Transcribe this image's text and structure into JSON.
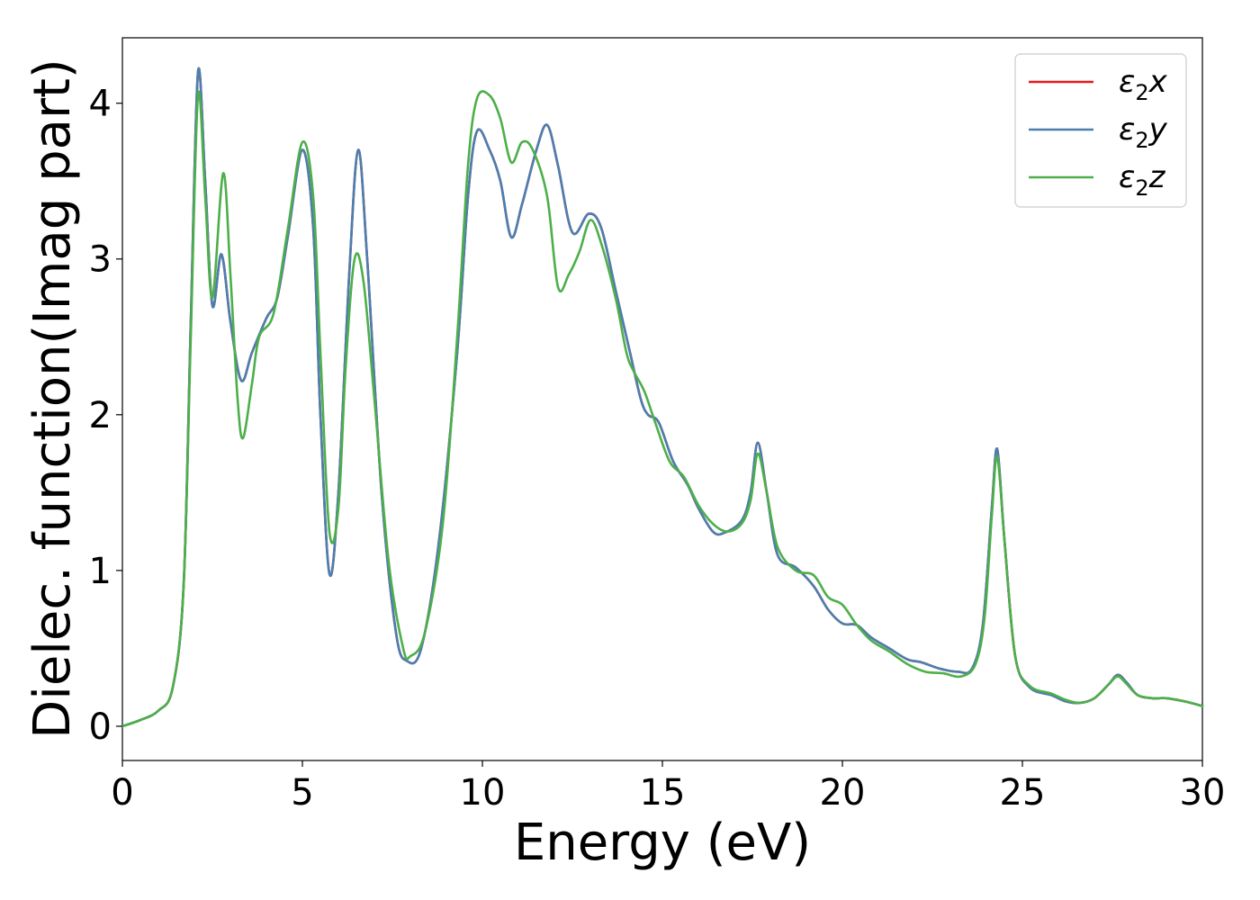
{
  "chart_data": {
    "type": "line",
    "xlabel": "Energy (eV)",
    "ylabel": "Dielec. function(Imag part)",
    "xlim": [
      0,
      30
    ],
    "ylim": [
      -0.22,
      4.42
    ],
    "xticks": [
      0,
      5,
      10,
      15,
      20,
      25,
      30
    ],
    "yticks": [
      0,
      1,
      2,
      3,
      4
    ],
    "xtick_labels": [
      "0",
      "5",
      "10",
      "15",
      "20",
      "25",
      "30"
    ],
    "ytick_labels": [
      "0",
      "1",
      "2",
      "3",
      "4"
    ],
    "grid": false,
    "legend_position": "top-right",
    "series": [
      {
        "name": "ε₂x",
        "legend_label": {
          "sym": "ε",
          "sub": "2",
          "axis": "x"
        },
        "color": "#e41a1c",
        "points": [
          [
            0,
            0
          ],
          [
            0.5,
            0.04
          ],
          [
            1.0,
            0.1
          ],
          [
            1.4,
            0.25
          ],
          [
            1.7,
            0.9
          ],
          [
            1.9,
            2.6
          ],
          [
            2.1,
            4.2
          ],
          [
            2.3,
            3.5
          ],
          [
            2.5,
            2.7
          ],
          [
            2.75,
            3.03
          ],
          [
            3.0,
            2.6
          ],
          [
            3.3,
            2.22
          ],
          [
            3.6,
            2.4
          ],
          [
            4.0,
            2.62
          ],
          [
            4.3,
            2.75
          ],
          [
            4.6,
            3.15
          ],
          [
            5.0,
            3.7
          ],
          [
            5.3,
            3.2
          ],
          [
            5.5,
            2.0
          ],
          [
            5.75,
            0.98
          ],
          [
            6.0,
            1.5
          ],
          [
            6.3,
            2.9
          ],
          [
            6.55,
            3.7
          ],
          [
            6.8,
            3.0
          ],
          [
            7.2,
            1.5
          ],
          [
            7.6,
            0.6
          ],
          [
            7.9,
            0.42
          ],
          [
            8.3,
            0.5
          ],
          [
            8.8,
            1.2
          ],
          [
            9.3,
            2.4
          ],
          [
            9.6,
            3.4
          ],
          [
            9.85,
            3.82
          ],
          [
            10.2,
            3.7
          ],
          [
            10.5,
            3.5
          ],
          [
            10.8,
            3.14
          ],
          [
            11.1,
            3.35
          ],
          [
            11.5,
            3.7
          ],
          [
            11.8,
            3.86
          ],
          [
            12.1,
            3.6
          ],
          [
            12.5,
            3.17
          ],
          [
            12.95,
            3.29
          ],
          [
            13.3,
            3.2
          ],
          [
            13.7,
            2.8
          ],
          [
            14.1,
            2.4
          ],
          [
            14.4,
            2.1
          ],
          [
            14.6,
            2.0
          ],
          [
            14.9,
            1.95
          ],
          [
            15.3,
            1.7
          ],
          [
            15.7,
            1.55
          ],
          [
            16.0,
            1.4
          ],
          [
            16.4,
            1.25
          ],
          [
            16.7,
            1.24
          ],
          [
            17.2,
            1.32
          ],
          [
            17.45,
            1.5
          ],
          [
            17.65,
            1.82
          ],
          [
            17.9,
            1.5
          ],
          [
            18.2,
            1.1
          ],
          [
            18.7,
            1.02
          ],
          [
            19.2,
            0.9
          ],
          [
            19.6,
            0.75
          ],
          [
            20.0,
            0.66
          ],
          [
            20.4,
            0.65
          ],
          [
            20.8,
            0.57
          ],
          [
            21.3,
            0.5
          ],
          [
            21.8,
            0.43
          ],
          [
            22.2,
            0.41
          ],
          [
            22.7,
            0.37
          ],
          [
            23.2,
            0.35
          ],
          [
            23.6,
            0.37
          ],
          [
            23.9,
            0.65
          ],
          [
            24.15,
            1.4
          ],
          [
            24.3,
            1.78
          ],
          [
            24.5,
            1.2
          ],
          [
            24.8,
            0.45
          ],
          [
            25.2,
            0.25
          ],
          [
            25.8,
            0.2
          ],
          [
            26.2,
            0.16
          ],
          [
            26.6,
            0.15
          ],
          [
            27.0,
            0.18
          ],
          [
            27.4,
            0.27
          ],
          [
            27.65,
            0.33
          ],
          [
            27.9,
            0.28
          ],
          [
            28.2,
            0.2
          ],
          [
            28.6,
            0.18
          ],
          [
            29.0,
            0.18
          ],
          [
            29.5,
            0.16
          ],
          [
            30.0,
            0.13
          ]
        ]
      },
      {
        "name": "ε₂y",
        "legend_label": {
          "sym": "ε",
          "sub": "2",
          "axis": "y"
        },
        "color": "#4a7fb0",
        "points": [
          [
            0,
            0
          ],
          [
            0.5,
            0.04
          ],
          [
            1.0,
            0.1
          ],
          [
            1.4,
            0.25
          ],
          [
            1.7,
            0.9
          ],
          [
            1.9,
            2.6
          ],
          [
            2.1,
            4.2
          ],
          [
            2.3,
            3.5
          ],
          [
            2.5,
            2.7
          ],
          [
            2.75,
            3.03
          ],
          [
            3.0,
            2.6
          ],
          [
            3.3,
            2.22
          ],
          [
            3.6,
            2.4
          ],
          [
            4.0,
            2.62
          ],
          [
            4.3,
            2.75
          ],
          [
            4.6,
            3.15
          ],
          [
            5.0,
            3.7
          ],
          [
            5.3,
            3.2
          ],
          [
            5.5,
            2.0
          ],
          [
            5.75,
            0.98
          ],
          [
            6.0,
            1.5
          ],
          [
            6.3,
            2.9
          ],
          [
            6.55,
            3.7
          ],
          [
            6.8,
            3.0
          ],
          [
            7.2,
            1.5
          ],
          [
            7.6,
            0.6
          ],
          [
            7.9,
            0.42
          ],
          [
            8.3,
            0.5
          ],
          [
            8.8,
            1.2
          ],
          [
            9.3,
            2.4
          ],
          [
            9.6,
            3.4
          ],
          [
            9.85,
            3.82
          ],
          [
            10.2,
            3.7
          ],
          [
            10.5,
            3.5
          ],
          [
            10.8,
            3.14
          ],
          [
            11.1,
            3.35
          ],
          [
            11.5,
            3.7
          ],
          [
            11.8,
            3.86
          ],
          [
            12.1,
            3.6
          ],
          [
            12.5,
            3.17
          ],
          [
            12.95,
            3.29
          ],
          [
            13.3,
            3.2
          ],
          [
            13.7,
            2.8
          ],
          [
            14.1,
            2.4
          ],
          [
            14.4,
            2.1
          ],
          [
            14.6,
            2.0
          ],
          [
            14.9,
            1.95
          ],
          [
            15.3,
            1.7
          ],
          [
            15.7,
            1.55
          ],
          [
            16.0,
            1.4
          ],
          [
            16.4,
            1.25
          ],
          [
            16.7,
            1.24
          ],
          [
            17.2,
            1.32
          ],
          [
            17.45,
            1.5
          ],
          [
            17.65,
            1.82
          ],
          [
            17.9,
            1.5
          ],
          [
            18.2,
            1.1
          ],
          [
            18.7,
            1.02
          ],
          [
            19.2,
            0.9
          ],
          [
            19.6,
            0.75
          ],
          [
            20.0,
            0.66
          ],
          [
            20.4,
            0.65
          ],
          [
            20.8,
            0.57
          ],
          [
            21.3,
            0.5
          ],
          [
            21.8,
            0.43
          ],
          [
            22.2,
            0.41
          ],
          [
            22.7,
            0.37
          ],
          [
            23.2,
            0.35
          ],
          [
            23.6,
            0.37
          ],
          [
            23.9,
            0.65
          ],
          [
            24.15,
            1.4
          ],
          [
            24.3,
            1.78
          ],
          [
            24.5,
            1.2
          ],
          [
            24.8,
            0.45
          ],
          [
            25.2,
            0.25
          ],
          [
            25.8,
            0.2
          ],
          [
            26.2,
            0.16
          ],
          [
            26.6,
            0.15
          ],
          [
            27.0,
            0.18
          ],
          [
            27.4,
            0.27
          ],
          [
            27.65,
            0.33
          ],
          [
            27.9,
            0.28
          ],
          [
            28.2,
            0.2
          ],
          [
            28.6,
            0.18
          ],
          [
            29.0,
            0.18
          ],
          [
            29.5,
            0.16
          ],
          [
            30.0,
            0.13
          ]
        ]
      },
      {
        "name": "ε₂z",
        "legend_label": {
          "sym": "ε",
          "sub": "2",
          "axis": "z"
        },
        "color": "#4daf4a",
        "points": [
          [
            0,
            0
          ],
          [
            0.5,
            0.04
          ],
          [
            1.0,
            0.1
          ],
          [
            1.4,
            0.25
          ],
          [
            1.7,
            0.9
          ],
          [
            1.9,
            2.5
          ],
          [
            2.1,
            4.05
          ],
          [
            2.3,
            3.4
          ],
          [
            2.5,
            2.75
          ],
          [
            2.8,
            3.55
          ],
          [
            3.0,
            2.9
          ],
          [
            3.2,
            2.1
          ],
          [
            3.35,
            1.85
          ],
          [
            3.6,
            2.2
          ],
          [
            3.8,
            2.5
          ],
          [
            4.2,
            2.65
          ],
          [
            4.6,
            3.2
          ],
          [
            5.0,
            3.75
          ],
          [
            5.3,
            3.4
          ],
          [
            5.5,
            2.4
          ],
          [
            5.75,
            1.25
          ],
          [
            6.0,
            1.4
          ],
          [
            6.2,
            2.3
          ],
          [
            6.45,
            3.0
          ],
          [
            6.7,
            2.85
          ],
          [
            7.0,
            2.1
          ],
          [
            7.4,
            1.05
          ],
          [
            7.8,
            0.5
          ],
          [
            8.0,
            0.45
          ],
          [
            8.4,
            0.6
          ],
          [
            8.9,
            1.3
          ],
          [
            9.3,
            2.5
          ],
          [
            9.6,
            3.6
          ],
          [
            9.85,
            4.03
          ],
          [
            10.2,
            4.05
          ],
          [
            10.5,
            3.9
          ],
          [
            10.8,
            3.62
          ],
          [
            11.1,
            3.75
          ],
          [
            11.4,
            3.7
          ],
          [
            11.8,
            3.4
          ],
          [
            12.1,
            2.82
          ],
          [
            12.4,
            2.9
          ],
          [
            12.7,
            3.05
          ],
          [
            13.0,
            3.25
          ],
          [
            13.3,
            3.1
          ],
          [
            13.7,
            2.75
          ],
          [
            14.0,
            2.4
          ],
          [
            14.2,
            2.28
          ],
          [
            14.5,
            2.15
          ],
          [
            14.8,
            1.95
          ],
          [
            15.2,
            1.7
          ],
          [
            15.6,
            1.6
          ],
          [
            16.0,
            1.42
          ],
          [
            16.4,
            1.3
          ],
          [
            16.8,
            1.25
          ],
          [
            17.2,
            1.3
          ],
          [
            17.45,
            1.45
          ],
          [
            17.65,
            1.75
          ],
          [
            17.9,
            1.5
          ],
          [
            18.2,
            1.15
          ],
          [
            18.7,
            1.0
          ],
          [
            19.2,
            0.97
          ],
          [
            19.6,
            0.83
          ],
          [
            20.0,
            0.78
          ],
          [
            20.4,
            0.65
          ],
          [
            20.8,
            0.55
          ],
          [
            21.3,
            0.48
          ],
          [
            21.8,
            0.4
          ],
          [
            22.3,
            0.35
          ],
          [
            22.8,
            0.34
          ],
          [
            23.3,
            0.32
          ],
          [
            23.7,
            0.4
          ],
          [
            23.95,
            0.7
          ],
          [
            24.15,
            1.35
          ],
          [
            24.3,
            1.73
          ],
          [
            24.5,
            1.2
          ],
          [
            24.8,
            0.45
          ],
          [
            25.2,
            0.26
          ],
          [
            25.8,
            0.21
          ],
          [
            26.2,
            0.17
          ],
          [
            26.6,
            0.15
          ],
          [
            27.0,
            0.18
          ],
          [
            27.4,
            0.27
          ],
          [
            27.65,
            0.32
          ],
          [
            27.9,
            0.27
          ],
          [
            28.2,
            0.2
          ],
          [
            28.6,
            0.18
          ],
          [
            29.0,
            0.18
          ],
          [
            29.5,
            0.16
          ],
          [
            30.0,
            0.13
          ]
        ]
      }
    ]
  }
}
